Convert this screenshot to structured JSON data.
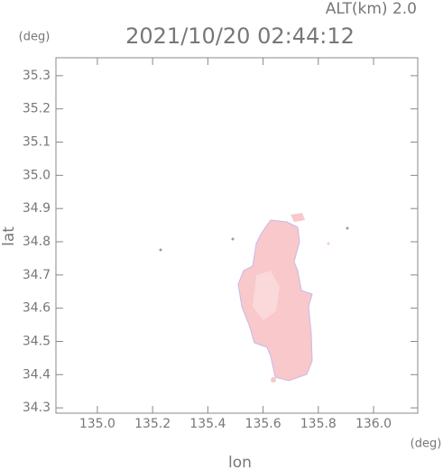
{
  "chart_data": {
    "type": "map",
    "title": "2021/10/20 02:44:12",
    "subtitle": "ALT(km) 2.0",
    "x_label": "lon",
    "y_label": "lat",
    "x_unit": "(deg)",
    "y_unit": "(deg)",
    "xlim": [
      134.85,
      136.16
    ],
    "ylim": [
      34.284,
      35.354
    ],
    "xticks": [
      {
        "value": 135.0,
        "label": "135.0"
      },
      135.2,
      135.4,
      135.6,
      135.8,
      {
        "value": 136.0,
        "label": "136.0"
      }
    ],
    "yticks": [
      34.3,
      34.4,
      34.5,
      34.6,
      34.7,
      34.8,
      34.9,
      {
        "value": 35.0,
        "label": "35.0"
      },
      35.1,
      35.2,
      35.3
    ]
  }
}
